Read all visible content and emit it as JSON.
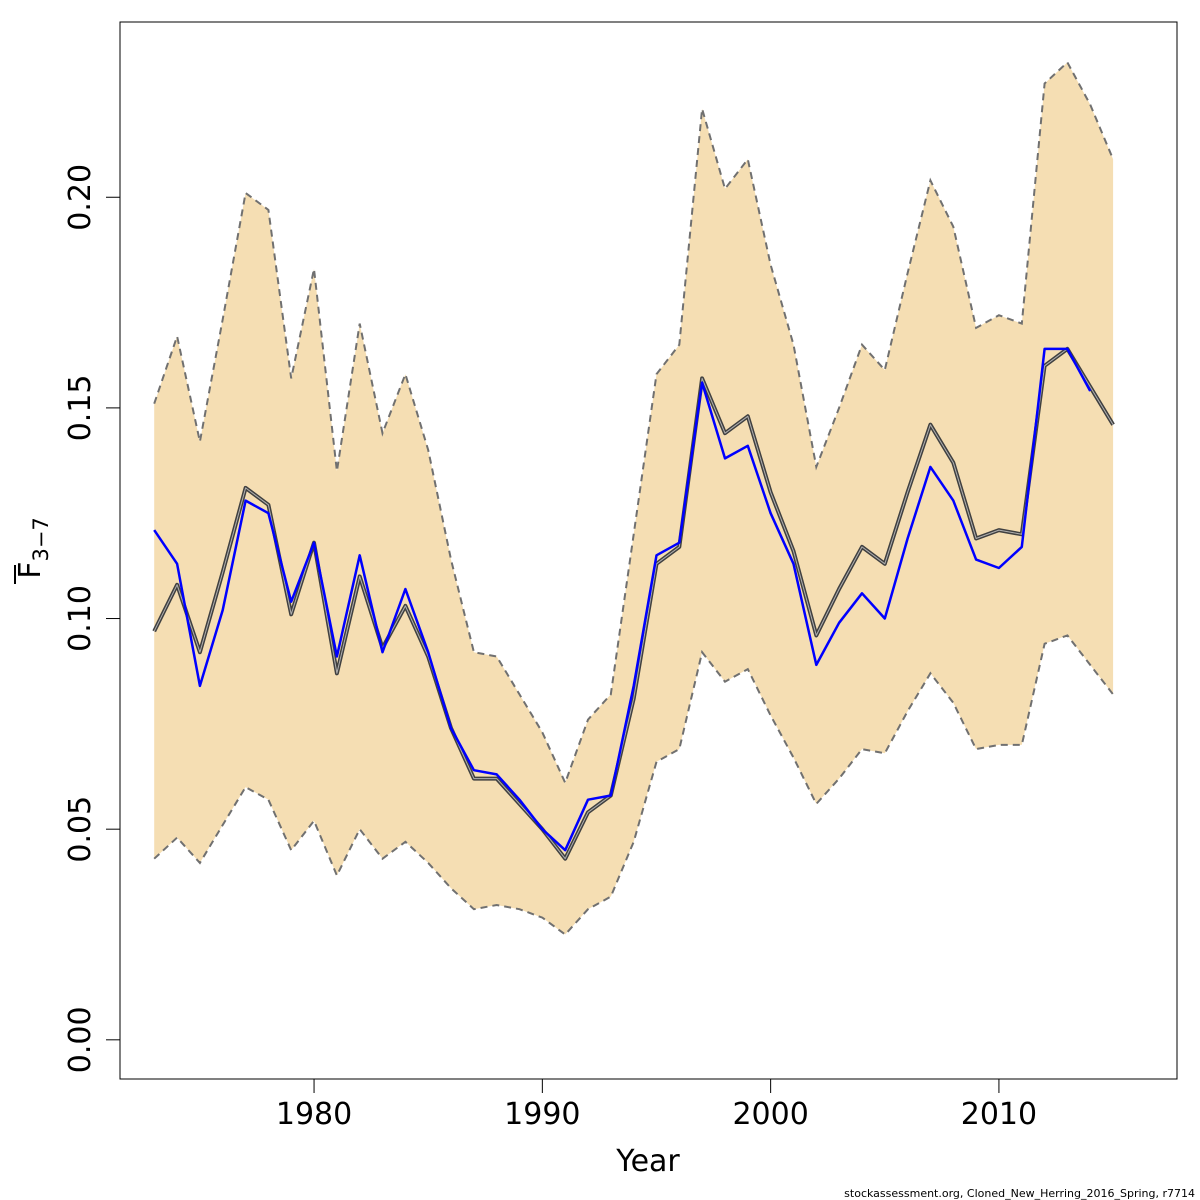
{
  "chart_data": {
    "type": "line",
    "xlabel": "Year",
    "ylabel_main": "F",
    "ylabel_sub": "3−7",
    "xlim": [
      1971.5,
      2017.8
    ],
    "ylim": [
      -0.0093,
      0.2416
    ],
    "xticks": [
      1980,
      1990,
      2000,
      2010
    ],
    "yticks": [
      0.0,
      0.05,
      0.1,
      0.15,
      0.2
    ],
    "ytick_labels": [
      "0.00",
      "0.05",
      "0.10",
      "0.15",
      "0.20"
    ],
    "colors": {
      "band_fill": "#f5deb3",
      "band_edge": "#707070",
      "estimate": "#404040",
      "retro": "#0000ff",
      "axis": "#000000"
    },
    "years": [
      1973,
      1974,
      1975,
      1976,
      1977,
      1978,
      1979,
      1980,
      1981,
      1982,
      1983,
      1984,
      1985,
      1986,
      1987,
      1988,
      1989,
      1990,
      1991,
      1992,
      1993,
      1994,
      1995,
      1996,
      1997,
      1998,
      1999,
      2000,
      2001,
      2002,
      2003,
      2004,
      2005,
      2006,
      2007,
      2008,
      2009,
      2010,
      2011,
      2012,
      2013,
      2014,
      2015
    ],
    "upper": [
      0.151,
      0.167,
      0.142,
      0.171,
      0.201,
      0.197,
      0.157,
      0.183,
      0.135,
      0.17,
      0.144,
      0.158,
      0.14,
      0.114,
      0.092,
      0.091,
      0.082,
      0.073,
      0.061,
      0.076,
      0.082,
      0.12,
      0.158,
      0.165,
      0.221,
      0.202,
      0.209,
      0.184,
      0.165,
      0.136,
      0.15,
      0.165,
      0.159,
      0.182,
      0.204,
      0.193,
      0.169,
      0.172,
      0.17,
      0.227,
      0.232,
      0.222,
      0.209
    ],
    "estimate": [
      0.097,
      0.108,
      0.092,
      0.111,
      0.131,
      0.127,
      0.101,
      0.118,
      0.087,
      0.11,
      0.093,
      0.103,
      0.091,
      0.074,
      0.062,
      0.062,
      0.056,
      0.05,
      0.043,
      0.054,
      0.058,
      0.081,
      0.113,
      0.117,
      0.157,
      0.144,
      0.148,
      0.13,
      0.116,
      0.096,
      0.107,
      0.117,
      0.113,
      0.13,
      0.146,
      0.137,
      0.119,
      0.121,
      0.12,
      0.16,
      0.164,
      0.155,
      0.146
    ],
    "lower": [
      0.043,
      0.048,
      0.042,
      0.051,
      0.06,
      0.057,
      0.045,
      0.052,
      0.039,
      0.05,
      0.043,
      0.047,
      0.042,
      0.036,
      0.031,
      0.032,
      0.031,
      0.029,
      0.025,
      0.031,
      0.034,
      0.047,
      0.066,
      0.069,
      0.092,
      0.085,
      0.088,
      0.077,
      0.067,
      0.056,
      0.062,
      0.069,
      0.068,
      0.078,
      0.087,
      0.08,
      0.069,
      0.07,
      0.07,
      0.094,
      0.096,
      0.089,
      0.082
    ],
    "retro_years": [
      1973,
      1974,
      1975,
      1976,
      1977,
      1978,
      1979,
      1980,
      1981,
      1982,
      1983,
      1984,
      1985,
      1986,
      1987,
      1988,
      1989,
      1990,
      1991,
      1992,
      1993,
      1994,
      1995,
      1996,
      1997,
      1998,
      1999,
      2000,
      2001,
      2002,
      2003,
      2004,
      2005,
      2006,
      2007,
      2008,
      2009,
      2010,
      2011,
      2012,
      2013,
      2014
    ],
    "retro": [
      0.121,
      0.113,
      0.084,
      0.102,
      0.128,
      0.125,
      0.104,
      0.118,
      0.091,
      0.115,
      0.092,
      0.107,
      0.092,
      0.074,
      0.064,
      0.063,
      0.057,
      0.05,
      0.045,
      0.057,
      0.058,
      0.084,
      0.115,
      0.118,
      0.156,
      0.138,
      0.141,
      0.125,
      0.113,
      0.089,
      0.099,
      0.106,
      0.1,
      0.119,
      0.136,
      0.128,
      0.114,
      0.112,
      0.117,
      0.164,
      0.164,
      0.154
    ]
  },
  "footer": "stockassessment.org, Cloned_New_Herring_2016_Spring, r7714"
}
